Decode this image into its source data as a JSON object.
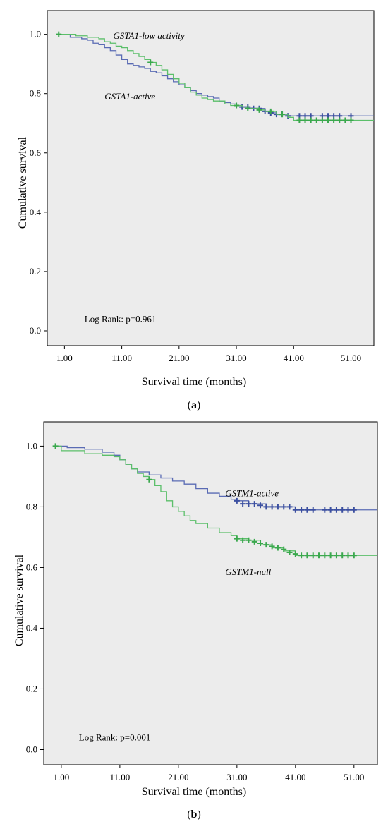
{
  "chart_data": [
    {
      "type": "line",
      "panel": "a",
      "caption_letter": "a",
      "xlabel": "Survival time (months)",
      "ylabel": "Cumulative survival",
      "xlim": [
        -2,
        55
      ],
      "ylim": [
        -0.05,
        1.08
      ],
      "xticks": [
        "1.00",
        "11.00",
        "21.00",
        "31.00",
        "41.00",
        "51.00"
      ],
      "xtick_values": [
        1,
        11,
        21,
        31,
        41,
        51
      ],
      "yticks": [
        "0.0",
        "0.2",
        "0.4",
        "0.6",
        "0.8",
        "1.0"
      ],
      "ytick_values": [
        0,
        0.2,
        0.4,
        0.6,
        0.8,
        1.0
      ],
      "grid": false,
      "background_color": "#ececec",
      "annotations": [
        {
          "text": "GSTA1-low activity",
          "x": 9.5,
          "y": 0.985,
          "italic": true
        },
        {
          "text": "GSTA1-active",
          "x": 8.0,
          "y": 0.78,
          "italic": true
        },
        {
          "text": "Log Rank: p=0.961",
          "x": 4.5,
          "y": 0.03,
          "italic": false
        }
      ],
      "series": [
        {
          "color": "#5a6bb4",
          "censor_color": "#3b4fa0",
          "x": [
            0,
            2,
            4,
            5,
            6,
            7,
            8,
            9,
            10,
            11,
            12,
            13,
            14,
            15,
            16,
            17,
            18,
            19,
            20,
            21,
            22,
            23,
            24,
            25,
            26,
            27,
            28,
            29,
            30,
            31,
            32,
            34,
            36,
            37,
            38,
            40,
            55
          ],
          "y": [
            1.0,
            0.99,
            0.985,
            0.98,
            0.97,
            0.965,
            0.955,
            0.945,
            0.93,
            0.915,
            0.9,
            0.895,
            0.89,
            0.885,
            0.875,
            0.87,
            0.86,
            0.85,
            0.84,
            0.83,
            0.82,
            0.81,
            0.8,
            0.795,
            0.79,
            0.785,
            0.775,
            0.77,
            0.765,
            0.76,
            0.755,
            0.75,
            0.74,
            0.735,
            0.73,
            0.725,
            0.725
          ],
          "censored_x": [
            31,
            32,
            33,
            34,
            35,
            36,
            37,
            38,
            39,
            40,
            42,
            43,
            44,
            46,
            47,
            48,
            49,
            51
          ],
          "censored_y": [
            0.76,
            0.755,
            0.755,
            0.75,
            0.75,
            0.74,
            0.735,
            0.73,
            0.73,
            0.725,
            0.725,
            0.725,
            0.725,
            0.725,
            0.725,
            0.725,
            0.725,
            0.725
          ]
        },
        {
          "color": "#5bbf6a",
          "censor_color": "#3aa84d",
          "x": [
            0,
            3,
            5,
            7,
            8,
            9,
            10,
            11,
            12,
            13,
            14,
            15,
            16,
            17,
            18,
            19,
            20,
            21,
            22,
            23,
            24,
            25,
            26,
            27,
            29,
            30,
            32,
            33,
            35,
            36,
            38,
            40,
            41,
            55
          ],
          "y": [
            1.0,
            0.995,
            0.99,
            0.985,
            0.975,
            0.97,
            0.96,
            0.955,
            0.945,
            0.935,
            0.925,
            0.915,
            0.905,
            0.895,
            0.88,
            0.865,
            0.85,
            0.835,
            0.82,
            0.805,
            0.795,
            0.785,
            0.78,
            0.775,
            0.765,
            0.76,
            0.755,
            0.75,
            0.745,
            0.74,
            0.73,
            0.72,
            0.71,
            0.71
          ],
          "censored_x": [
            0,
            16,
            31,
            33,
            35,
            37,
            39,
            42,
            43,
            44,
            45,
            46,
            47,
            48,
            49,
            50,
            51
          ],
          "censored_y": [
            1.0,
            0.905,
            0.76,
            0.75,
            0.745,
            0.74,
            0.73,
            0.71,
            0.71,
            0.71,
            0.71,
            0.71,
            0.71,
            0.71,
            0.71,
            0.71,
            0.71
          ]
        }
      ]
    },
    {
      "type": "line",
      "panel": "b",
      "caption_letter": "b",
      "xlabel": "Survival time (months)",
      "ylabel": "Cumulative survival",
      "xlim": [
        -2,
        55
      ],
      "ylim": [
        -0.05,
        1.08
      ],
      "xticks": [
        "1.00",
        "11.00",
        "21.00",
        "31.00",
        "41.00",
        "51.00"
      ],
      "xtick_values": [
        1,
        11,
        21,
        31,
        41,
        51
      ],
      "yticks": [
        "0.0",
        "0.2",
        "0.4",
        "0.6",
        "0.8",
        "1.0"
      ],
      "ytick_values": [
        0,
        0.2,
        0.4,
        0.6,
        0.8,
        1.0
      ],
      "grid": false,
      "background_color": "#ececec",
      "annotations": [
        {
          "text": "GSTM1-active",
          "x": 29.0,
          "y": 0.835,
          "italic": true
        },
        {
          "text": "GSTM1-null",
          "x": 29.0,
          "y": 0.575,
          "italic": true
        },
        {
          "text": "Log Rank: p=0.001",
          "x": 4.0,
          "y": 0.03,
          "italic": false
        }
      ],
      "series": [
        {
          "color": "#5a6bb4",
          "censor_color": "#3b4fa0",
          "x": [
            0,
            2,
            5,
            8,
            10,
            11,
            12,
            13,
            14,
            16,
            18,
            20,
            22,
            24,
            26,
            28,
            30,
            31,
            33,
            36,
            41,
            55
          ],
          "y": [
            1.0,
            0.995,
            0.99,
            0.98,
            0.97,
            0.955,
            0.94,
            0.925,
            0.915,
            0.905,
            0.895,
            0.885,
            0.875,
            0.86,
            0.845,
            0.835,
            0.825,
            0.82,
            0.81,
            0.8,
            0.79,
            0.79
          ],
          "censored_x": [
            31,
            32,
            33,
            34,
            35,
            36,
            37,
            38,
            39,
            40,
            41,
            42,
            43,
            44,
            46,
            47,
            48,
            49,
            50,
            51
          ],
          "censored_y": [
            0.82,
            0.81,
            0.81,
            0.81,
            0.805,
            0.8,
            0.8,
            0.8,
            0.8,
            0.8,
            0.79,
            0.79,
            0.79,
            0.79,
            0.79,
            0.79,
            0.79,
            0.79,
            0.79,
            0.79
          ]
        },
        {
          "color": "#5bbf6a",
          "censor_color": "#3aa84d",
          "x": [
            0,
            1,
            5,
            8,
            10,
            11,
            12,
            13,
            14,
            15,
            16,
            17,
            18,
            19,
            20,
            21,
            22,
            23,
            24,
            26,
            28,
            30,
            31,
            33,
            35,
            37,
            39,
            41,
            55
          ],
          "y": [
            1.0,
            0.985,
            0.975,
            0.97,
            0.965,
            0.955,
            0.94,
            0.925,
            0.91,
            0.9,
            0.89,
            0.87,
            0.85,
            0.82,
            0.8,
            0.785,
            0.77,
            0.755,
            0.745,
            0.73,
            0.715,
            0.705,
            0.695,
            0.69,
            0.675,
            0.665,
            0.655,
            0.64,
            0.64
          ],
          "censored_x": [
            0,
            16,
            31,
            32,
            33,
            34,
            35,
            36,
            37,
            38,
            39,
            40,
            41,
            42,
            43,
            44,
            45,
            46,
            47,
            48,
            49,
            50,
            51
          ],
          "censored_y": [
            1.0,
            0.89,
            0.695,
            0.69,
            0.69,
            0.685,
            0.68,
            0.675,
            0.67,
            0.665,
            0.66,
            0.65,
            0.645,
            0.64,
            0.64,
            0.64,
            0.64,
            0.64,
            0.64,
            0.64,
            0.64,
            0.64,
            0.64
          ]
        }
      ]
    }
  ]
}
